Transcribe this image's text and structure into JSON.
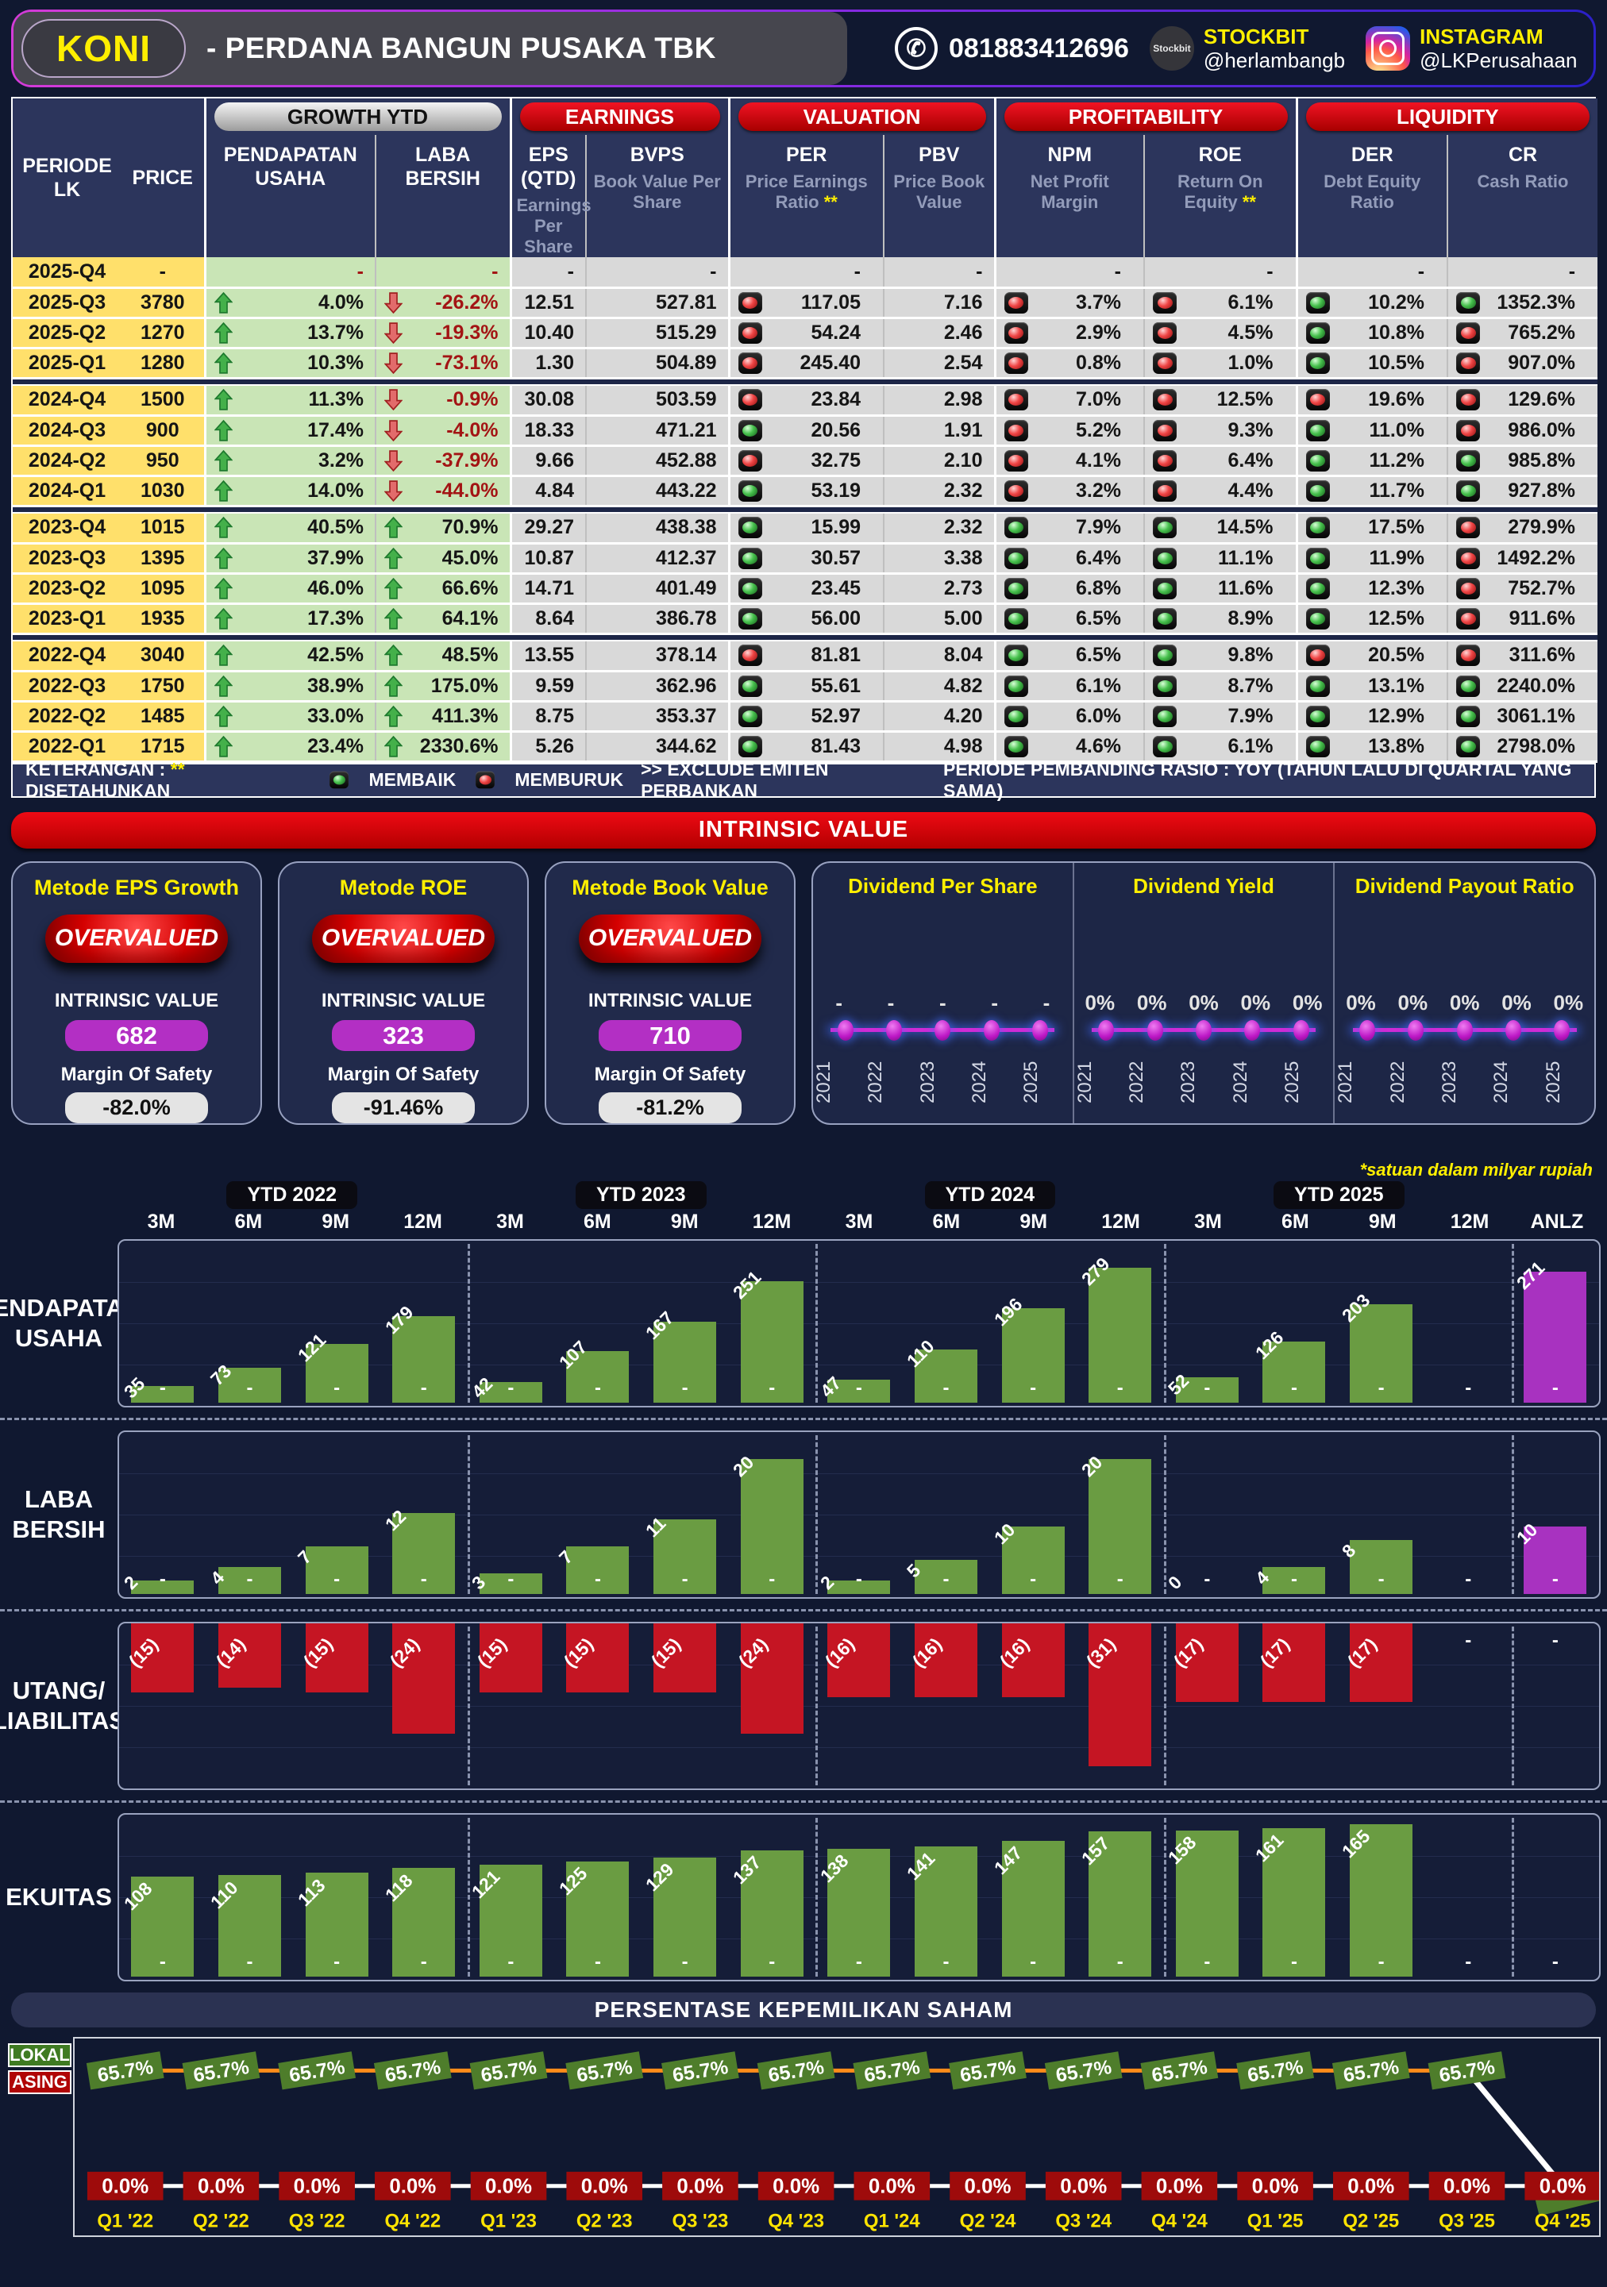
{
  "header": {
    "ticker": "KONI",
    "company": "-  PERDANA BANGUN PUSAKA TBK",
    "whatsapp": "081883412696",
    "stockbit_icon_text": "Stockbit",
    "stockbit_label": "STOCKBIT",
    "stockbit_handle": "@herlambangb",
    "instagram_label": "INSTAGRAM",
    "instagram_handle": "@LKPerusahaan"
  },
  "table": {
    "sections": [
      {
        "label": "GROWTH YTD",
        "style": "gray"
      },
      {
        "label": "EARNINGS",
        "style": "red"
      },
      {
        "label": "VALUATION",
        "style": "red"
      },
      {
        "label": "PROFITABILITY",
        "style": "red"
      },
      {
        "label": "LIQUIDITY",
        "style": "red"
      }
    ],
    "periode_header": "PERIODE LK",
    "price_header": "PRICE",
    "col_headers": [
      {
        "key": "rev",
        "h1": "PENDAPATAN USAHA",
        "sub": "",
        "star": false,
        "cls": "sec"
      },
      {
        "key": "np",
        "h1": "LABA BERSIH",
        "sub": "",
        "star": false,
        "cls": "inner"
      },
      {
        "key": "eps",
        "h1": "EPS (QTD)",
        "sub": "Earnings Per Share",
        "star": false,
        "cls": "sec"
      },
      {
        "key": "bvps",
        "h1": "BVPS",
        "sub": "Book Value Per Share",
        "star": false,
        "cls": "inner"
      },
      {
        "key": "per",
        "h1": "PER",
        "sub": "Price Earnings Ratio",
        "star": true,
        "cls": "sec"
      },
      {
        "key": "pbv",
        "h1": "PBV",
        "sub": "Price Book Value",
        "star": false,
        "cls": "inner"
      },
      {
        "key": "npm",
        "h1": "NPM",
        "sub": "Net Profit Margin",
        "star": false,
        "cls": "sec"
      },
      {
        "key": "roe",
        "h1": "ROE",
        "sub": "Return On Equity",
        "star": true,
        "cls": "inner"
      },
      {
        "key": "der",
        "h1": "DER",
        "sub": "Debt Equity Ratio",
        "star": false,
        "cls": "sec"
      },
      {
        "key": "cr",
        "h1": "CR",
        "sub": "Cash Ratio",
        "star": false,
        "cls": "inner"
      }
    ],
    "rows": [
      {
        "period": "2025-Q4",
        "price": "-",
        "rev": [
          "",
          "-"
        ],
        "np": [
          "",
          "-"
        ],
        "eps": "-",
        "bvps": "-",
        "per": [
          "",
          "-"
        ],
        "pbv": "-",
        "npm": [
          "",
          "-"
        ],
        "roe": [
          "",
          "-"
        ],
        "der": [
          "",
          "-"
        ],
        "cr": [
          "",
          "-"
        ],
        "sep": false
      },
      {
        "period": "2025-Q3",
        "price": "3780",
        "rev": [
          "up",
          "4.0%"
        ],
        "np": [
          "down",
          "-26.2%"
        ],
        "eps": "12.51",
        "bvps": "527.81",
        "per": [
          "R",
          "117.05"
        ],
        "pbv": "7.16",
        "npm": [
          "R",
          "3.7%"
        ],
        "roe": [
          "R",
          "6.1%"
        ],
        "der": [
          "G",
          "10.2%"
        ],
        "cr": [
          "G",
          "1352.3%"
        ],
        "sep": false
      },
      {
        "period": "2025-Q2",
        "price": "1270",
        "rev": [
          "up",
          "13.7%"
        ],
        "np": [
          "down",
          "-19.3%"
        ],
        "eps": "10.40",
        "bvps": "515.29",
        "per": [
          "R",
          "54.24"
        ],
        "pbv": "2.46",
        "npm": [
          "R",
          "2.9%"
        ],
        "roe": [
          "R",
          "4.5%"
        ],
        "der": [
          "G",
          "10.8%"
        ],
        "cr": [
          "R",
          "765.2%"
        ],
        "sep": false
      },
      {
        "period": "2025-Q1",
        "price": "1280",
        "rev": [
          "up",
          "10.3%"
        ],
        "np": [
          "down",
          "-73.1%"
        ],
        "eps": "1.30",
        "bvps": "504.89",
        "per": [
          "R",
          "245.40"
        ],
        "pbv": "2.54",
        "npm": [
          "R",
          "0.8%"
        ],
        "roe": [
          "R",
          "1.0%"
        ],
        "der": [
          "G",
          "10.5%"
        ],
        "cr": [
          "R",
          "907.0%"
        ],
        "sep": true
      },
      {
        "period": "2024-Q4",
        "price": "1500",
        "rev": [
          "up",
          "11.3%"
        ],
        "np": [
          "down",
          "-0.9%"
        ],
        "eps": "30.08",
        "bvps": "503.59",
        "per": [
          "R",
          "23.84"
        ],
        "pbv": "2.98",
        "npm": [
          "R",
          "7.0%"
        ],
        "roe": [
          "R",
          "12.5%"
        ],
        "der": [
          "R",
          "19.6%"
        ],
        "cr": [
          "R",
          "129.6%"
        ],
        "sep": false
      },
      {
        "period": "2024-Q3",
        "price": "900",
        "rev": [
          "up",
          "17.4%"
        ],
        "np": [
          "down",
          "-4.0%"
        ],
        "eps": "18.33",
        "bvps": "471.21",
        "per": [
          "G",
          "20.56"
        ],
        "pbv": "1.91",
        "npm": [
          "R",
          "5.2%"
        ],
        "roe": [
          "R",
          "9.3%"
        ],
        "der": [
          "G",
          "11.0%"
        ],
        "cr": [
          "R",
          "986.0%"
        ],
        "sep": false
      },
      {
        "period": "2024-Q2",
        "price": "950",
        "rev": [
          "up",
          "3.2%"
        ],
        "np": [
          "down",
          "-37.9%"
        ],
        "eps": "9.66",
        "bvps": "452.88",
        "per": [
          "R",
          "32.75"
        ],
        "pbv": "2.10",
        "npm": [
          "R",
          "4.1%"
        ],
        "roe": [
          "R",
          "6.4%"
        ],
        "der": [
          "G",
          "11.2%"
        ],
        "cr": [
          "G",
          "985.8%"
        ],
        "sep": false
      },
      {
        "period": "2024-Q1",
        "price": "1030",
        "rev": [
          "up",
          "14.0%"
        ],
        "np": [
          "down",
          "-44.0%"
        ],
        "eps": "4.84",
        "bvps": "443.22",
        "per": [
          "G",
          "53.19"
        ],
        "pbv": "2.32",
        "npm": [
          "R",
          "3.2%"
        ],
        "roe": [
          "R",
          "4.4%"
        ],
        "der": [
          "G",
          "11.7%"
        ],
        "cr": [
          "G",
          "927.8%"
        ],
        "sep": true
      },
      {
        "period": "2023-Q4",
        "price": "1015",
        "rev": [
          "up",
          "40.5%"
        ],
        "np": [
          "up",
          "70.9%"
        ],
        "eps": "29.27",
        "bvps": "438.38",
        "per": [
          "G",
          "15.99"
        ],
        "pbv": "2.32",
        "npm": [
          "G",
          "7.9%"
        ],
        "roe": [
          "G",
          "14.5%"
        ],
        "der": [
          "G",
          "17.5%"
        ],
        "cr": [
          "R",
          "279.9%"
        ],
        "sep": false
      },
      {
        "period": "2023-Q3",
        "price": "1395",
        "rev": [
          "up",
          "37.9%"
        ],
        "np": [
          "up",
          "45.0%"
        ],
        "eps": "10.87",
        "bvps": "412.37",
        "per": [
          "G",
          "30.57"
        ],
        "pbv": "3.38",
        "npm": [
          "G",
          "6.4%"
        ],
        "roe": [
          "G",
          "11.1%"
        ],
        "der": [
          "G",
          "11.9%"
        ],
        "cr": [
          "R",
          "1492.2%"
        ],
        "sep": false
      },
      {
        "period": "2023-Q2",
        "price": "1095",
        "rev": [
          "up",
          "46.0%"
        ],
        "np": [
          "up",
          "66.6%"
        ],
        "eps": "14.71",
        "bvps": "401.49",
        "per": [
          "G",
          "23.45"
        ],
        "pbv": "2.73",
        "npm": [
          "G",
          "6.8%"
        ],
        "roe": [
          "G",
          "11.6%"
        ],
        "der": [
          "G",
          "12.3%"
        ],
        "cr": [
          "R",
          "752.7%"
        ],
        "sep": false
      },
      {
        "period": "2023-Q1",
        "price": "1935",
        "rev": [
          "up",
          "17.3%"
        ],
        "np": [
          "up",
          "64.1%"
        ],
        "eps": "8.64",
        "bvps": "386.78",
        "per": [
          "G",
          "56.00"
        ],
        "pbv": "5.00",
        "npm": [
          "G",
          "6.5%"
        ],
        "roe": [
          "G",
          "8.9%"
        ],
        "der": [
          "G",
          "12.5%"
        ],
        "cr": [
          "R",
          "911.6%"
        ],
        "sep": true
      },
      {
        "period": "2022-Q4",
        "price": "3040",
        "rev": [
          "up",
          "42.5%"
        ],
        "np": [
          "up",
          "48.5%"
        ],
        "eps": "13.55",
        "bvps": "378.14",
        "per": [
          "R",
          "81.81"
        ],
        "pbv": "8.04",
        "npm": [
          "G",
          "6.5%"
        ],
        "roe": [
          "G",
          "9.8%"
        ],
        "der": [
          "R",
          "20.5%"
        ],
        "cr": [
          "R",
          "311.6%"
        ],
        "sep": false
      },
      {
        "period": "2022-Q3",
        "price": "1750",
        "rev": [
          "up",
          "38.9%"
        ],
        "np": [
          "up",
          "175.0%"
        ],
        "eps": "9.59",
        "bvps": "362.96",
        "per": [
          "G",
          "55.61"
        ],
        "pbv": "4.82",
        "npm": [
          "G",
          "6.1%"
        ],
        "roe": [
          "G",
          "8.7%"
        ],
        "der": [
          "G",
          "13.1%"
        ],
        "cr": [
          "G",
          "2240.0%"
        ],
        "sep": false
      },
      {
        "period": "2022-Q2",
        "price": "1485",
        "rev": [
          "up",
          "33.0%"
        ],
        "np": [
          "up",
          "411.3%"
        ],
        "eps": "8.75",
        "bvps": "353.37",
        "per": [
          "G",
          "52.97"
        ],
        "pbv": "4.20",
        "npm": [
          "G",
          "6.0%"
        ],
        "roe": [
          "G",
          "7.9%"
        ],
        "der": [
          "G",
          "12.9%"
        ],
        "cr": [
          "G",
          "3061.1%"
        ],
        "sep": false
      },
      {
        "period": "2022-Q1",
        "price": "1715",
        "rev": [
          "up",
          "23.4%"
        ],
        "np": [
          "up",
          "2330.6%"
        ],
        "eps": "5.26",
        "bvps": "344.62",
        "per": [
          "G",
          "81.43"
        ],
        "pbv": "4.98",
        "npm": [
          "G",
          "4.6%"
        ],
        "roe": [
          "G",
          "6.1%"
        ],
        "der": [
          "G",
          "13.8%"
        ],
        "cr": [
          "G",
          "2798.0%"
        ],
        "sep": false
      }
    ]
  },
  "legend": {
    "k_label": "KETERANGAN :",
    "star": "**",
    "k1": "DISETAHUNKAN",
    "m1": "MEMBAIK",
    "m2": "MEMBURUK",
    "k2": ">> EXCLUDE EMITEN PERBANKAN",
    "right": "PERIODE PEMBANDING RASIO : YOY (TAHUN LALU DI QUARTAL YANG SAMA)"
  },
  "intrinsic": {
    "banner": "INTRINSIC VALUE",
    "methods": [
      {
        "title": "Metode EPS Growth",
        "verdict": "OVERVALUED",
        "iv_label": "INTRINSIC VALUE",
        "value": "682",
        "mos_label": "Margin Of Safety",
        "mos": "-82.0%"
      },
      {
        "title": "Metode ROE",
        "verdict": "OVERVALUED",
        "iv_label": "INTRINSIC VALUE",
        "value": "323",
        "mos_label": "Margin Of Safety",
        "mos": "-91.46%"
      },
      {
        "title": "Metode Book Value",
        "verdict": "OVERVALUED",
        "iv_label": "INTRINSIC VALUE",
        "value": "710",
        "mos_label": "Margin Of Safety",
        "mos": "-81.2%"
      }
    ]
  },
  "note": "*satuan dalam milyar rupiah",
  "chart_data": [
    {
      "type": "line",
      "title": "Dividend Per Share",
      "x": [
        "2021",
        "2022",
        "2023",
        "2024",
        "2025"
      ],
      "values": [
        null,
        null,
        null,
        null,
        null
      ],
      "point_labels": [
        "-",
        "-",
        "-",
        "-",
        "-"
      ],
      "line_color": "#cf2bd6"
    },
    {
      "type": "line",
      "title": "Dividend Yield",
      "x": [
        "2021",
        "2022",
        "2023",
        "2024",
        "2025"
      ],
      "values": [
        0,
        0,
        0,
        0,
        0
      ],
      "point_labels": [
        "0%",
        "0%",
        "0%",
        "0%",
        "0%"
      ],
      "line_color": "#cf2bd6"
    },
    {
      "type": "line",
      "title": "Dividend Payout Ratio",
      "x": [
        "2021",
        "2022",
        "2023",
        "2024",
        "2025"
      ],
      "values": [
        0,
        0,
        0,
        0,
        0
      ],
      "point_labels": [
        "0%",
        "0%",
        "0%",
        "0%",
        "0%"
      ],
      "line_color": "#cf2bd6"
    },
    {
      "type": "bar",
      "title": "PENDAPATAN USAHA",
      "label_lines": [
        "PENDAPATAN",
        "USAHA"
      ],
      "unit": "milyar rupiah",
      "groups": [
        "YTD 2022",
        "YTD 2023",
        "YTD 2024",
        "YTD 2025"
      ],
      "cols": [
        "3M",
        "6M",
        "9M",
        "12M"
      ],
      "series": [
        [
          35,
          73,
          121,
          179
        ],
        [
          42,
          107,
          167,
          251
        ],
        [
          47,
          110,
          196,
          279
        ],
        [
          52,
          126,
          203,
          null
        ]
      ],
      "anlz": 271,
      "ylim": [
        0,
        279
      ],
      "bar_color": "#6a9c42",
      "anlz_color": "#a832c0",
      "mode": "up",
      "label_pos": "over",
      "paren": false
    },
    {
      "type": "bar",
      "title": "LABA BERSIH",
      "label_lines": [
        "LABA",
        "BERSIH"
      ],
      "unit": "milyar rupiah",
      "groups": [
        "YTD 2022",
        "YTD 2023",
        "YTD 2024",
        "YTD 2025"
      ],
      "cols": [
        "3M",
        "6M",
        "9M",
        "12M"
      ],
      "series": [
        [
          2,
          4,
          7,
          12
        ],
        [
          3,
          7,
          11,
          20
        ],
        [
          2,
          5,
          10,
          20
        ],
        [
          0,
          4,
          8,
          null
        ]
      ],
      "anlz": 10,
      "ylim": [
        0,
        20
      ],
      "bar_color": "#6a9c42",
      "anlz_color": "#a832c0",
      "mode": "up",
      "label_pos": "over",
      "paren": false
    },
    {
      "type": "bar",
      "title": "UTANG/LIABILITAS",
      "label_lines": [
        "UTANG/",
        "LIABILITAS"
      ],
      "unit": "milyar rupiah",
      "groups": [
        "YTD 2022",
        "YTD 2023",
        "YTD 2024",
        "YTD 2025"
      ],
      "cols": [
        "3M",
        "6M",
        "9M",
        "12M"
      ],
      "series": [
        [
          15,
          14,
          15,
          24
        ],
        [
          15,
          15,
          15,
          24
        ],
        [
          16,
          16,
          16,
          31
        ],
        [
          17,
          17,
          17,
          null
        ]
      ],
      "anlz": null,
      "ylim": [
        0,
        31
      ],
      "bar_color": "#c51523",
      "anlz_color": "#a832c0",
      "mode": "hang",
      "label_pos": "hang",
      "paren": true
    },
    {
      "type": "bar",
      "title": "EKUITAS",
      "label_lines": [
        "EKUITAS"
      ],
      "unit": "milyar rupiah",
      "groups": [
        "YTD 2022",
        "YTD 2023",
        "YTD 2024",
        "YTD 2025"
      ],
      "cols": [
        "3M",
        "6M",
        "9M",
        "12M"
      ],
      "series": [
        [
          108,
          110,
          113,
          118
        ],
        [
          121,
          125,
          129,
          137
        ],
        [
          138,
          141,
          147,
          157
        ],
        [
          158,
          161,
          165,
          null
        ]
      ],
      "anlz": null,
      "ylim": [
        0,
        165
      ],
      "bar_color": "#6a9c42",
      "anlz_color": "#a832c0",
      "mode": "up",
      "label_pos": "inside",
      "paren": false
    },
    {
      "type": "line",
      "title": "PERSENTASE KEPEMILIKAN SAHAM",
      "x": [
        "Q1 '22",
        "Q2 '22",
        "Q3 '22",
        "Q4 '22",
        "Q1 '23",
        "Q2 '23",
        "Q3 '23",
        "Q4 '23",
        "Q1 '24",
        "Q2 '24",
        "Q3 '24",
        "Q4 '24",
        "Q1 '25",
        "Q2 '25",
        "Q3 '25",
        "Q4 '25"
      ],
      "series": [
        {
          "name": "LOKAL",
          "color": "#4e7d2b",
          "line_color": "#ff8c1a",
          "values": [
            65.7,
            65.7,
            65.7,
            65.7,
            65.7,
            65.7,
            65.7,
            65.7,
            65.7,
            65.7,
            65.7,
            65.7,
            65.7,
            65.7,
            65.7,
            0.0
          ]
        },
        {
          "name": "ASING",
          "color": "#9e0b0b",
          "line_color": "#ffffff",
          "values": [
            0.0,
            0.0,
            0.0,
            0.0,
            0.0,
            0.0,
            0.0,
            0.0,
            0.0,
            0.0,
            0.0,
            0.0,
            0.0,
            0.0,
            0.0,
            0.0
          ]
        }
      ],
      "ylim": [
        0,
        70
      ]
    }
  ],
  "financial_charts": {
    "anlz_label": "ANLZ",
    "groups": [
      "YTD 2022",
      "YTD 2023",
      "YTD 2024",
      "YTD 2025"
    ],
    "cols": [
      "3M",
      "6M",
      "9M",
      "12M"
    ]
  },
  "ownership_title": "PERSENTASE KEPEMILIKAN SAHAM",
  "dividend_years": [
    "2021",
    "2022",
    "2023",
    "2024",
    "2025"
  ]
}
